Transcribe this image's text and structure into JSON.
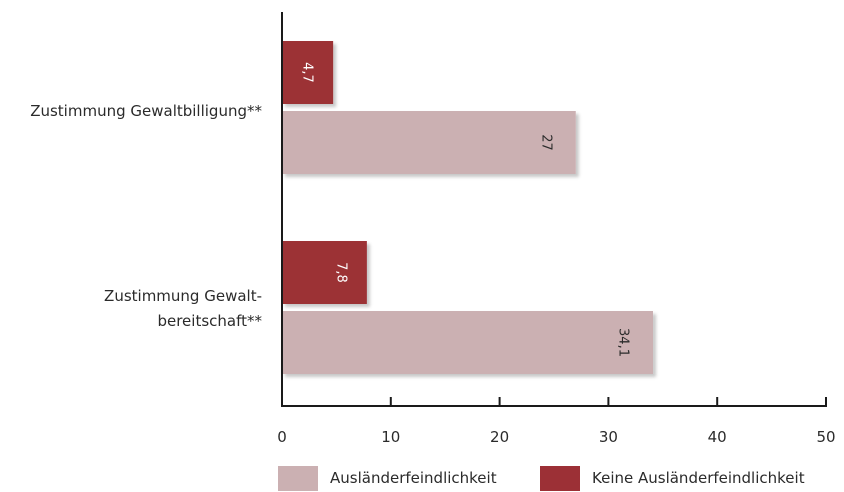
{
  "chart_data": {
    "type": "bar",
    "orientation": "horizontal",
    "categories": [
      [
        "Zustimmung Gewaltbilligung**"
      ],
      [
        "Zustimmung Gewalt-",
        "bereitschaft**"
      ]
    ],
    "series": [
      {
        "name": "Keine Ausländerfeindlichkeit",
        "values": [
          4.7,
          7.8
        ],
        "labels": [
          "4,7",
          "7,8"
        ],
        "color": "#9c3036",
        "label_color": "#ffffff"
      },
      {
        "name": "Ausländerfeindlichkeit",
        "values": [
          27,
          34.1
        ],
        "labels": [
          "27",
          "34,1"
        ],
        "color": "#cbb0b2",
        "label_color": "#2b2b2b"
      }
    ],
    "xlim": [
      0,
      50
    ],
    "xticks": [
      0,
      10,
      20,
      30,
      40,
      50
    ],
    "xtick_labels": [
      "0",
      "10",
      "20",
      "30",
      "40",
      "50"
    ],
    "legend": {
      "placement": "bottom",
      "order": [
        "Ausländerfeindlichkeit",
        "Keine Ausländerfeindlichkeit"
      ]
    },
    "grid": false,
    "data_label_rotation": 90
  }
}
